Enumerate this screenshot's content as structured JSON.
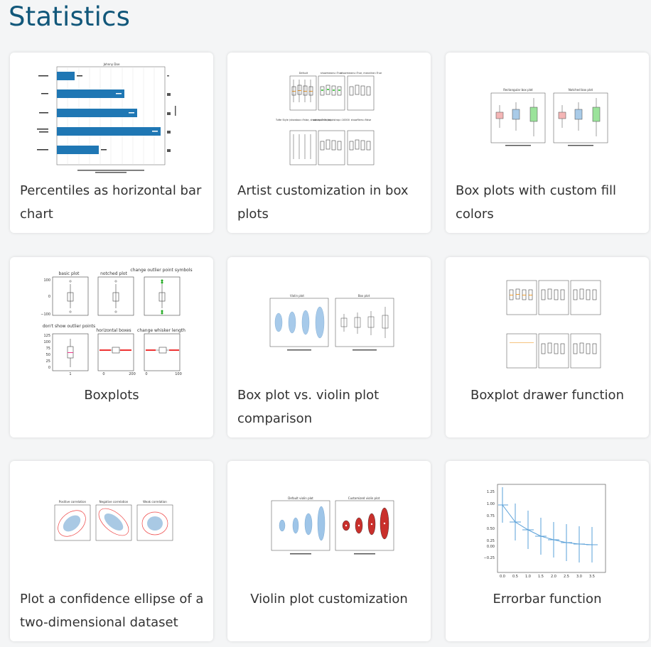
{
  "page": {
    "title": "Statistics"
  },
  "cards": [
    {
      "caption": "Percentiles as horizontal bar chart"
    },
    {
      "caption": "Artist customization in box plots"
    },
    {
      "caption": "Box plots with custom fill colors"
    },
    {
      "caption": "Boxplots"
    },
    {
      "caption": "Box plot vs. violin plot comparison"
    },
    {
      "caption": "Boxplot drawer function"
    },
    {
      "caption": "Plot a confidence ellipse of a two-dimensional dataset"
    },
    {
      "caption": "Violin plot customization"
    },
    {
      "caption": "Errorbar function"
    }
  ],
  "thumbs": {
    "percentiles": {
      "title": "Johnny Doe"
    },
    "artist": {
      "titles": [
        "Default",
        "showmeans=True",
        "showmeans=True, meanline=True",
        "Tufte Style (showbox=False, showcaps=False)",
        "notch=True, bootstrap=10000",
        "showfliers=False"
      ]
    },
    "fill": {
      "titles": [
        "Rectangular box plot",
        "Notched box plot"
      ]
    },
    "boxplots": {
      "titles": [
        "basic plot",
        "notched plot",
        "change outlier point symbols",
        "don't show outlier points",
        "horizontal boxes",
        "change whisker length"
      ],
      "y_ticks": [
        "100",
        "0",
        "−100"
      ],
      "y_ticks2": [
        "125",
        "100",
        "75",
        "50",
        "25",
        "0"
      ],
      "x_ticks": [
        "1",
        "0",
        "200",
        "0",
        "100"
      ]
    },
    "violin": {
      "titles": [
        "Violin plot",
        "Box plot"
      ]
    },
    "confidence": {
      "titles": [
        "Positive correlation",
        "Negative correlation",
        "Weak correlation"
      ]
    },
    "violin_custom": {
      "titles": [
        "Default violin plot",
        "Customized violin plot"
      ]
    },
    "errorbar": {
      "y_ticks": [
        "1.25",
        "1.00",
        "0.75",
        "0.50",
        "0.25",
        "0.00",
        "−0.25"
      ],
      "x_ticks": [
        "0.0",
        "0.5",
        "1.0",
        "1.5",
        "2.0",
        "2.5",
        "3.0",
        "3.5"
      ]
    }
  },
  "colors": {
    "title": "#11577a",
    "bar": "#1f77b4",
    "violin": "#9ec5e8",
    "violin_custom": "#c9302c",
    "fill_pink": "#f4b6b6",
    "fill_blue": "#a9cbe8",
    "fill_green": "#9be39b"
  }
}
